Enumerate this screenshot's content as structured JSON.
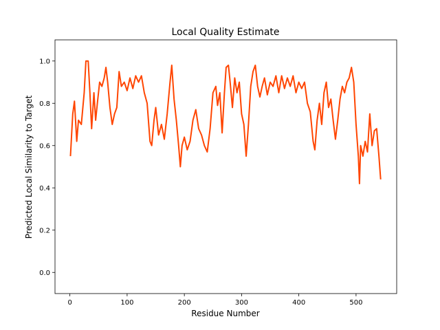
{
  "chart_data": {
    "type": "line",
    "title": "Local Quality Estimate",
    "x_label": "Residue Number",
    "y_label": "Predicted Local Similarity to Target",
    "x": [
      1,
      5,
      8,
      12,
      15,
      20,
      25,
      28,
      32,
      35,
      38,
      42,
      45,
      48,
      52,
      56,
      60,
      63,
      66,
      70,
      74,
      78,
      82,
      86,
      90,
      95,
      100,
      105,
      110,
      115,
      120,
      125,
      130,
      135,
      140,
      143,
      147,
      150,
      155,
      160,
      165,
      170,
      175,
      178,
      182,
      186,
      190,
      193,
      196,
      200,
      205,
      210,
      215,
      220,
      225,
      230,
      235,
      240,
      245,
      250,
      255,
      258,
      262,
      266,
      270,
      273,
      277,
      280,
      284,
      288,
      292,
      296,
      300,
      304,
      308,
      312,
      316,
      320,
      324,
      328,
      332,
      336,
      340,
      345,
      350,
      355,
      360,
      365,
      370,
      375,
      380,
      385,
      390,
      395,
      400,
      405,
      410,
      415,
      420,
      425,
      428,
      432,
      436,
      440,
      444,
      448,
      452,
      456,
      460,
      464,
      468,
      472,
      476,
      480,
      484,
      488,
      492,
      496,
      500,
      504,
      506,
      508,
      512,
      516,
      520,
      524,
      528,
      532,
      536,
      540,
      543
    ],
    "series": [
      {
        "color": "#ff4500",
        "values": [
          0.55,
          0.75,
          0.81,
          0.62,
          0.72,
          0.7,
          0.85,
          1.0,
          1.0,
          0.85,
          0.68,
          0.85,
          0.72,
          0.8,
          0.9,
          0.88,
          0.92,
          0.97,
          0.9,
          0.78,
          0.7,
          0.75,
          0.78,
          0.95,
          0.88,
          0.9,
          0.86,
          0.92,
          0.87,
          0.93,
          0.9,
          0.93,
          0.85,
          0.8,
          0.62,
          0.6,
          0.72,
          0.78,
          0.65,
          0.7,
          0.63,
          0.75,
          0.9,
          0.98,
          0.82,
          0.72,
          0.6,
          0.5,
          0.6,
          0.64,
          0.58,
          0.62,
          0.72,
          0.77,
          0.68,
          0.65,
          0.6,
          0.57,
          0.68,
          0.85,
          0.88,
          0.79,
          0.85,
          0.66,
          0.85,
          0.97,
          0.98,
          0.9,
          0.78,
          0.92,
          0.85,
          0.9,
          0.75,
          0.7,
          0.55,
          0.7,
          0.88,
          0.95,
          0.98,
          0.88,
          0.83,
          0.88,
          0.92,
          0.84,
          0.9,
          0.88,
          0.93,
          0.85,
          0.93,
          0.87,
          0.92,
          0.88,
          0.93,
          0.85,
          0.9,
          0.87,
          0.9,
          0.8,
          0.76,
          0.62,
          0.58,
          0.72,
          0.8,
          0.7,
          0.85,
          0.9,
          0.78,
          0.82,
          0.72,
          0.63,
          0.72,
          0.82,
          0.88,
          0.85,
          0.9,
          0.92,
          0.97,
          0.9,
          0.7,
          0.55,
          0.42,
          0.6,
          0.55,
          0.62,
          0.57,
          0.75,
          0.6,
          0.67,
          0.68,
          0.55,
          0.44
        ]
      }
    ],
    "xlim": [
      -26,
      571
    ],
    "ylim": [
      -0.1,
      1.1
    ],
    "xticks": [
      0,
      100,
      200,
      300,
      400,
      500
    ],
    "yticks": [
      {
        "value": 0,
        "label": "0.0"
      },
      0.2,
      0.4,
      0.6,
      0.8,
      {
        "value": 1,
        "label": "1.0"
      }
    ]
  }
}
